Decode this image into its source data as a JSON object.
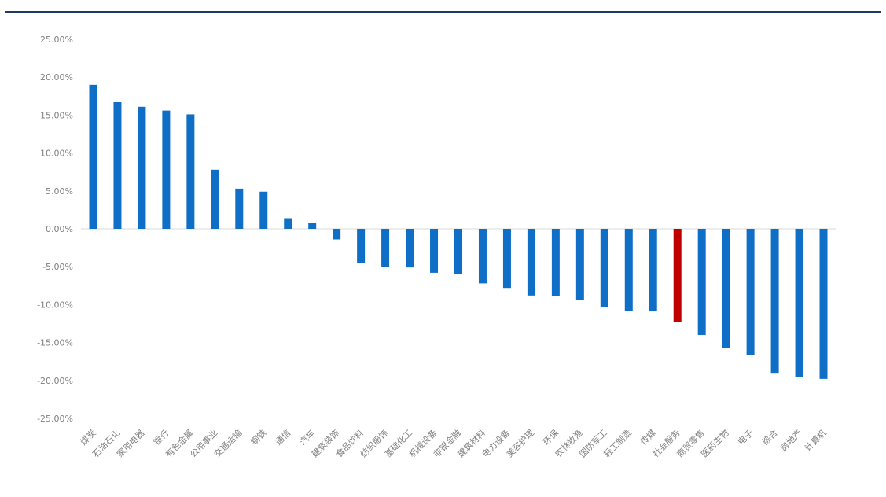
{
  "chart_data": {
    "type": "bar",
    "title": "",
    "xlabel": "",
    "ylabel": "",
    "ylim": [
      -25,
      25
    ],
    "yticks": [
      "25.00%",
      "20.00%",
      "15.00%",
      "10.00%",
      "5.00%",
      "0.00%",
      "-5.00%",
      "-10.00%",
      "-15.00%",
      "-20.00%",
      "-25.00%"
    ],
    "ytick_values": [
      25,
      20,
      15,
      10,
      5,
      0,
      -5,
      -10,
      -15,
      -20,
      -25
    ],
    "grid": false,
    "legend": "none",
    "bar_color": "#0f6fc6",
    "highlight_color": "#c00000",
    "highlight_category": "社会服务",
    "categories": [
      "煤炭",
      "石油石化",
      "家用电器",
      "银行",
      "有色金属",
      "公用事业",
      "交通运输",
      "钢铁",
      "通信",
      "汽车",
      "建筑装饰",
      "食品饮料",
      "纺织服饰",
      "基础化工",
      "机械设备",
      "非银金融",
      "建筑材料",
      "电力设备",
      "美容护理",
      "环保",
      "农林牧渔",
      "国防军工",
      "轻工制造",
      "传媒",
      "社会服务",
      "商贸零售",
      "医药生物",
      "电子",
      "综合",
      "房地产",
      "计算机"
    ],
    "values": [
      19.0,
      16.7,
      16.1,
      15.6,
      15.1,
      7.8,
      5.3,
      4.9,
      1.4,
      0.8,
      -1.4,
      -4.5,
      -5.0,
      -5.1,
      -5.8,
      -6.0,
      -7.2,
      -7.8,
      -8.8,
      -8.9,
      -9.4,
      -10.3,
      -10.8,
      -10.9,
      -12.3,
      -14.0,
      -15.7,
      -16.7,
      -19.0,
      -19.5,
      -19.8
    ]
  }
}
